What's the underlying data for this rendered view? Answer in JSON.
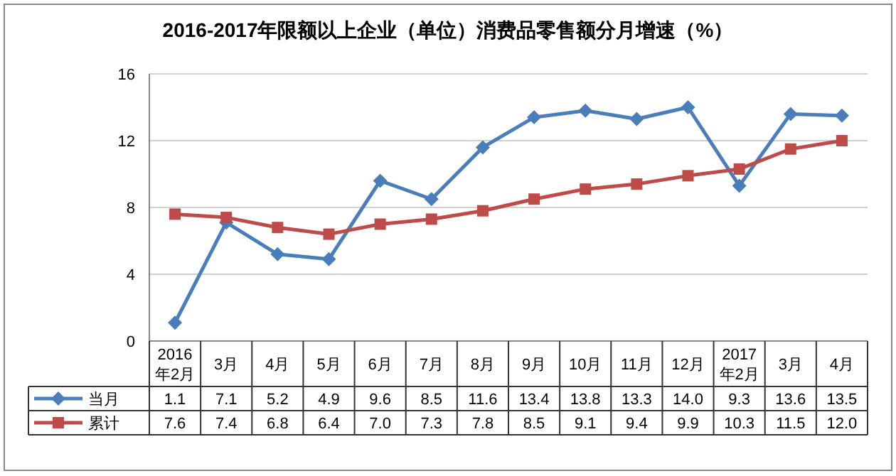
{
  "chart_data": {
    "type": "line",
    "title": "2016-2017年限额以上企业（单位）消费品零售额分月增速（%）",
    "categories": [
      "2016\n年2月",
      "3月",
      "4月",
      "5月",
      "6月",
      "7月",
      "8月",
      "9月",
      "10月",
      "11月",
      "12月",
      "2017\n年2月",
      "3月",
      "4月"
    ],
    "series": [
      {
        "name": "当月",
        "color": "#4a7ebb",
        "marker": "diamond",
        "values": [
          1.1,
          7.1,
          5.2,
          4.9,
          9.6,
          8.5,
          11.6,
          13.4,
          13.8,
          13.3,
          14.0,
          9.3,
          13.6,
          13.5
        ],
        "value_labels": [
          "1.1",
          "7.1",
          "5.2",
          "4.9",
          "9.6",
          "8.5",
          "11.6",
          "13.4",
          "13.8",
          "13.3",
          "14.0",
          "9.3",
          "13.6",
          "13.5"
        ]
      },
      {
        "name": "累计",
        "color": "#be4b48",
        "marker": "square",
        "values": [
          7.6,
          7.4,
          6.8,
          6.4,
          7.0,
          7.3,
          7.8,
          8.5,
          9.1,
          9.4,
          9.9,
          10.3,
          11.5,
          12.0
        ],
        "value_labels": [
          "7.6",
          "7.4",
          "6.8",
          "6.4",
          "7.0",
          "7.3",
          "7.8",
          "8.5",
          "9.1",
          "9.4",
          "9.9",
          "10.3",
          "11.5",
          "12.0"
        ]
      }
    ],
    "ylim": [
      0,
      16
    ],
    "yticks": [
      0,
      4,
      8,
      12,
      16
    ],
    "grid": "y",
    "legend": "bottom"
  }
}
